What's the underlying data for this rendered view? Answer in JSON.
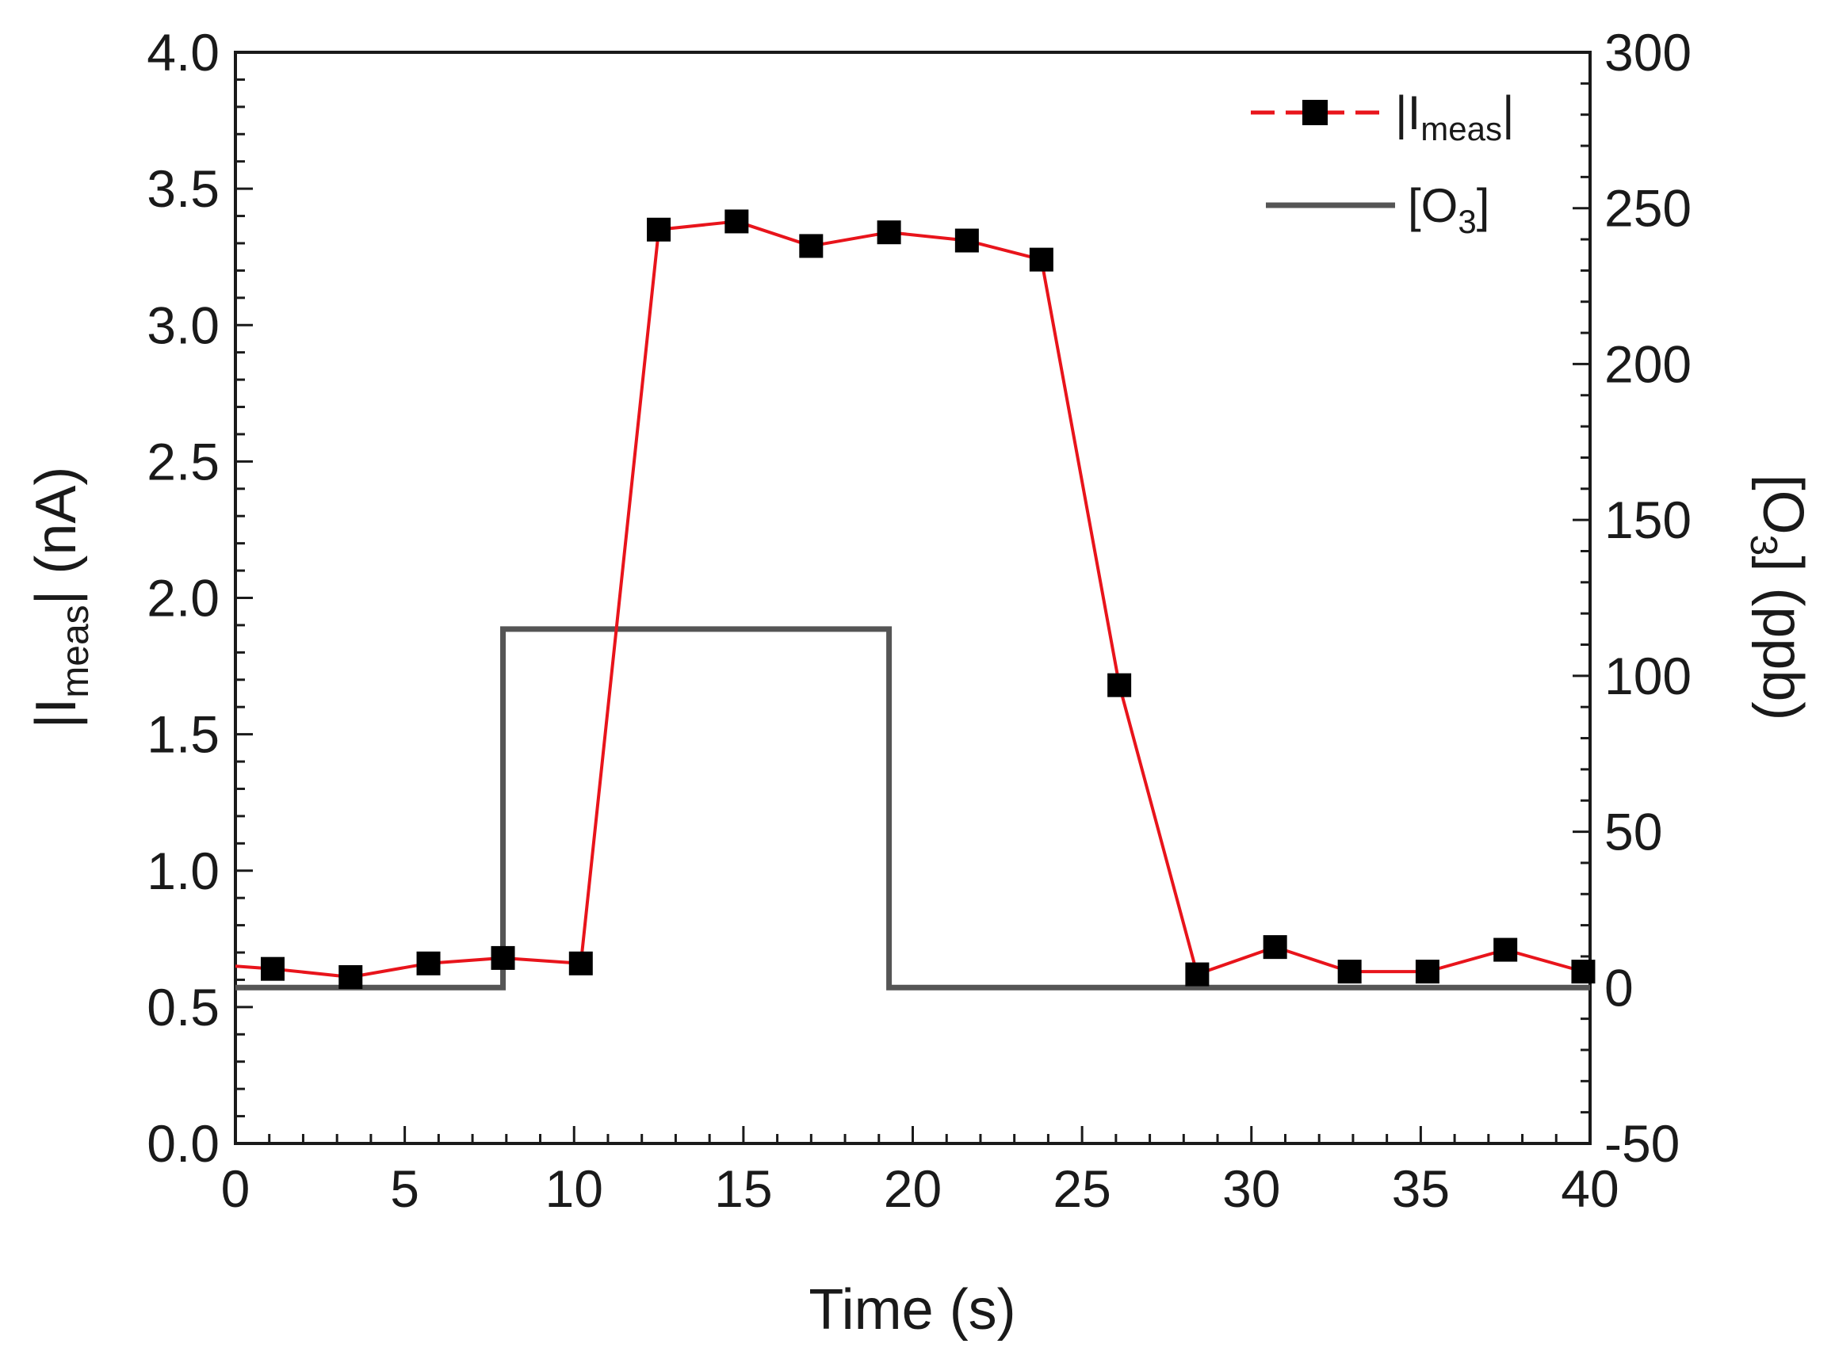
{
  "chart_data": {
    "type": "line",
    "x_axis": {
      "label": "Time (s)",
      "range": [
        0,
        40
      ],
      "major_step": 5,
      "minor_step": 1
    },
    "y_left": {
      "label_parts": [
        "|I",
        "meas",
        "| (nA)"
      ],
      "range": [
        0,
        4
      ],
      "major_step": 0.5,
      "minor_step": 0.1,
      "tick_labels": [
        "0.0",
        "0.5",
        "1.0",
        "1.5",
        "2.0",
        "2.5",
        "3.0",
        "3.5",
        "4.0"
      ]
    },
    "y_right": {
      "label_parts": [
        "[O",
        "3",
        "] (ppb)"
      ],
      "range": [
        -50,
        300
      ],
      "major_step": 50,
      "minor_step": 10,
      "tick_labels": [
        "-50",
        "0",
        "50",
        "100",
        "150",
        "200",
        "250",
        "300"
      ]
    },
    "series": [
      {
        "name_parts": [
          "|I",
          "meas",
          "|"
        ],
        "axis": "left",
        "color": "#e8141b",
        "marker_color": "#000000",
        "marker": "square",
        "x": [
          0,
          1.1,
          3.4,
          5.7,
          7.9,
          10.2,
          12.5,
          14.8,
          17.0,
          19.3,
          21.6,
          23.8,
          26.1,
          28.4,
          30.7,
          32.9,
          35.2,
          37.5,
          39.8
        ],
        "y": [
          0.65,
          0.64,
          0.61,
          0.66,
          0.68,
          0.66,
          3.35,
          3.38,
          3.29,
          3.34,
          3.31,
          3.24,
          1.68,
          0.62,
          0.72,
          0.63,
          0.63,
          0.71,
          0.63
        ],
        "marker_shown": [
          false,
          true,
          true,
          true,
          true,
          true,
          true,
          true,
          true,
          true,
          true,
          true,
          true,
          true,
          true,
          true,
          true,
          true,
          true
        ]
      },
      {
        "name_parts": [
          "[O",
          "3",
          "]"
        ],
        "axis": "right",
        "color": "#555555",
        "style": "step",
        "x": [
          0,
          7.9,
          7.9,
          19.3,
          19.3,
          40
        ],
        "y": [
          0,
          0,
          115,
          115,
          0,
          0
        ]
      }
    ],
    "legend_position": "top-right",
    "grid": false
  }
}
